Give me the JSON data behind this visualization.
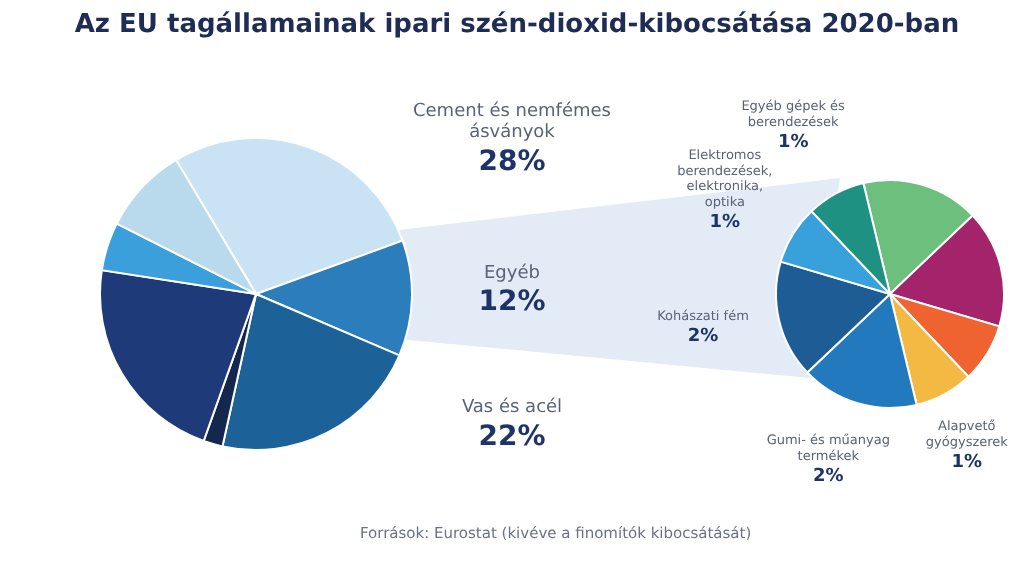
{
  "chart_data": [
    {
      "type": "pie",
      "title": "Az EU tagállamainak ipari szén-dioxid-kibocsátása 2020-ban",
      "categories": [
        "Cement és nemfémes ásványok",
        "Egyéb",
        "Vas és acél",
        null,
        null,
        null,
        null
      ],
      "values": [
        28,
        12,
        22,
        2,
        22,
        5,
        9
      ],
      "value_labels": [
        "28%",
        "12%",
        "22%",
        null,
        null,
        null,
        null
      ],
      "colors": [
        "#c9e3f5",
        "#2b7dbb",
        "#1c6299",
        "#15264f",
        "#1f3a78",
        "#3a9fdb",
        "#b9d9ec"
      ],
      "annotations": [
        "Források: Eurostat (kivéve a finomítók kibocsátását)"
      ]
    },
    {
      "type": "pie",
      "categories": [
        null,
        null,
        null,
        "Alapvető gyógyszerek",
        "Gumi- és műanyag termékek",
        "Kohászati fém",
        "Elektromos berendezések, elektronika, optika",
        "Egyéb gépek és berendezések"
      ],
      "values": [
        2,
        2,
        1,
        1,
        2,
        2,
        1,
        1
      ],
      "value_labels": [
        null,
        null,
        null,
        "1%",
        "2%",
        "2%",
        "1%",
        "1%"
      ],
      "colors": [
        "#6dbf7e",
        "#a3246b",
        "#ee6330",
        "#f4b942",
        "#2379be",
        "#1d5c94",
        "#38a1dc",
        "#1e9183"
      ]
    }
  ]
}
